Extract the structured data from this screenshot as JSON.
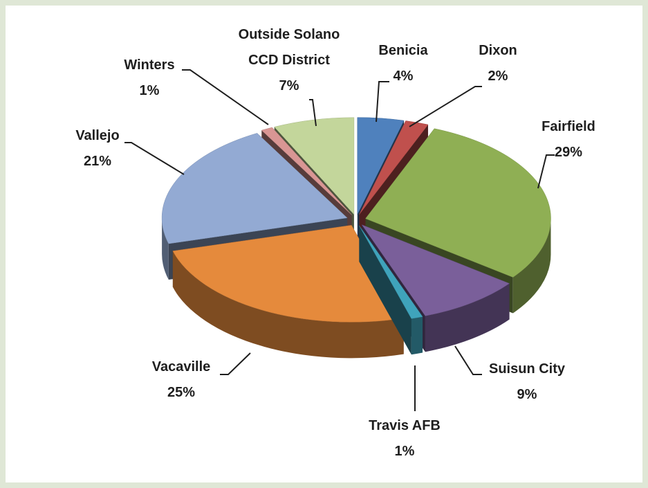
{
  "chart_data": {
    "type": "pie3d",
    "categories": [
      "Benicia",
      "Dixon",
      "Fairfield",
      "Suisun City",
      "Travis AFB",
      "Vacaville",
      "Vallejo",
      "Winters",
      "Outside Solano CCD District"
    ],
    "values": [
      4,
      2,
      29,
      9,
      1,
      25,
      21,
      1,
      7
    ],
    "value_labels": [
      "4%",
      "2%",
      "29%",
      "9%",
      "1%",
      "25%",
      "21%",
      "1%",
      "7%"
    ],
    "colors": [
      "#4f81bd",
      "#c0504d",
      "#8faf54",
      "#7a5f9a",
      "#3fa3bb",
      "#e58a3c",
      "#93aad3",
      "#d99694",
      "#c3d69b"
    ]
  }
}
